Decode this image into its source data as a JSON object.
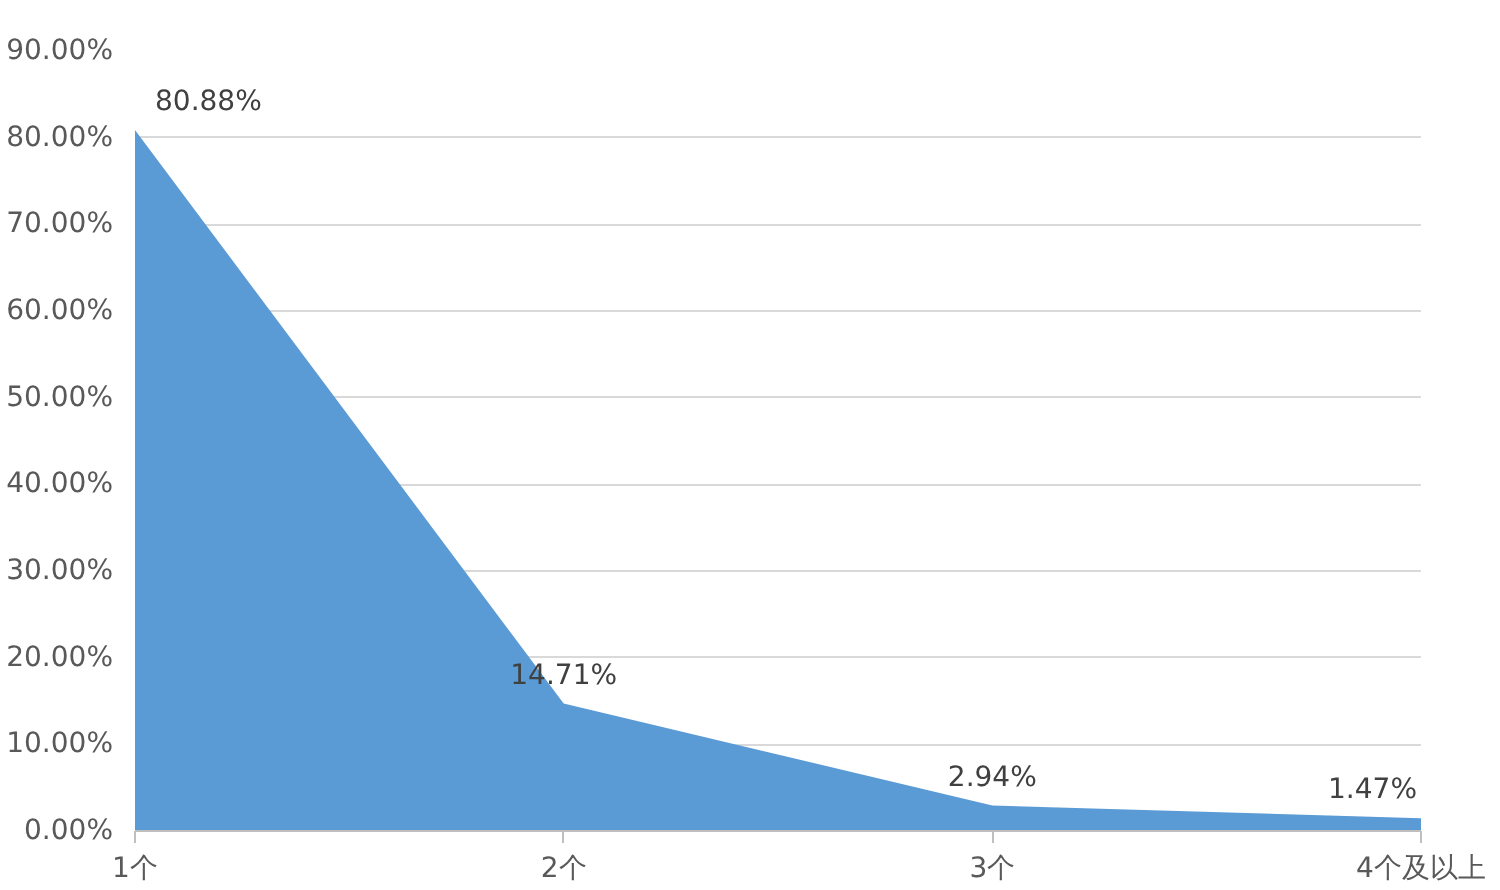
{
  "chart_data": {
    "type": "area",
    "categories": [
      "1个",
      "2个",
      "3个",
      "4个及以上"
    ],
    "values": [
      80.88,
      14.71,
      2.94,
      1.47
    ],
    "color": "#5b9bd5",
    "value_labels": [
      "80.88%",
      "14.71%",
      "2.94%",
      "1.47%"
    ],
    "ylim": [
      0,
      90
    ],
    "yticks": [
      {
        "value": 0,
        "label": "0.00%"
      },
      {
        "value": 10,
        "label": "10.00%"
      },
      {
        "value": 20,
        "label": "20.00%"
      },
      {
        "value": 30,
        "label": "30.00%"
      },
      {
        "value": 40,
        "label": "40.00%"
      },
      {
        "value": 50,
        "label": "50.00%"
      },
      {
        "value": 60,
        "label": "60.00%"
      },
      {
        "value": 70,
        "label": "70.00%"
      },
      {
        "value": 80,
        "label": "80.00%"
      },
      {
        "value": 90,
        "label": "90.00%"
      }
    ],
    "grid": "y"
  }
}
